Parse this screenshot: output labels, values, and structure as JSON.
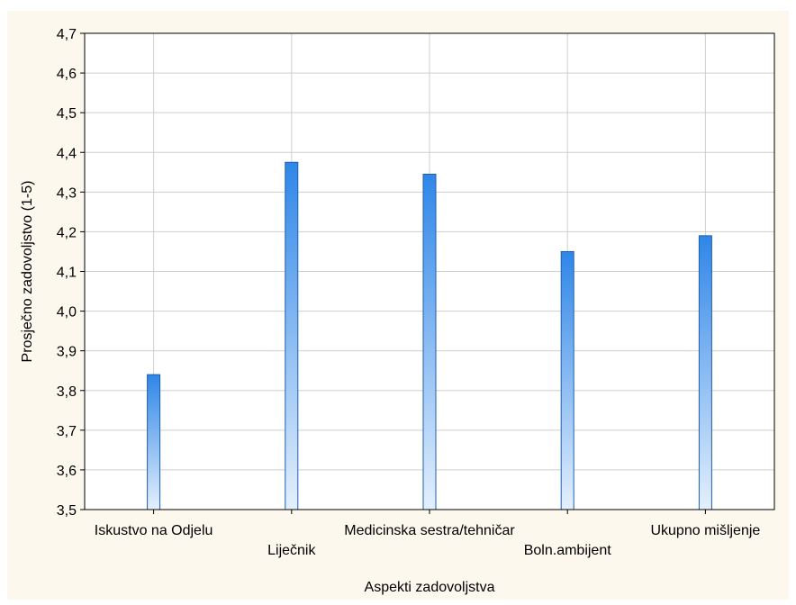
{
  "chart_data": {
    "type": "bar",
    "title": "",
    "xlabel": "Aspekti zadovoljstva",
    "ylabel": "Prosječno zadovoljstvo (1-5)",
    "ylim": [
      3.5,
      4.7
    ],
    "yticks": [
      3.5,
      3.6,
      3.7,
      3.8,
      3.9,
      4.0,
      4.1,
      4.2,
      4.3,
      4.4,
      4.5,
      4.6,
      4.7
    ],
    "ytick_labels": [
      "3,5",
      "3,6",
      "3,7",
      "3,8",
      "3,9",
      "4,0",
      "4,1",
      "4,2",
      "4,3",
      "4,4",
      "4,5",
      "4,6",
      "4,7"
    ],
    "categories": [
      "Iskustvo na Odjelu",
      "Liječnik",
      "Medicinska sestra/tehničar",
      "Boln.ambijent",
      "Ukupno mišljenje"
    ],
    "values": [
      3.84,
      4.375,
      4.345,
      4.15,
      4.19
    ],
    "grid": true,
    "colors": {
      "background": "#fdf8ee",
      "plot_background": "#ffffff",
      "grid": "#cfcfcf",
      "bar_top": "#2f86e8",
      "bar_bottom": "#e4f0fc",
      "bar_edge": "#1f5fb0"
    }
  }
}
